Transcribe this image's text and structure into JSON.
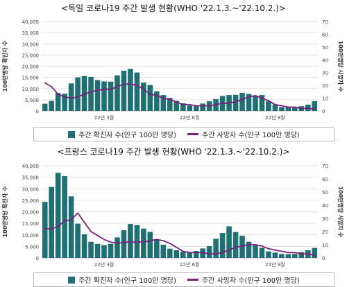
{
  "colors": {
    "bar": "#1f6f73",
    "line": "#7b1f7b",
    "grid": "#d9d9d9",
    "axis": "#9a9a9a"
  },
  "legend": {
    "bar_label": "주간 확진자 수(인구 100만 명당)",
    "line_label": "주간 사망자 수(인구 100만 명당)"
  },
  "chart_data": [
    {
      "type": "bar",
      "title": "<독일 코로나19 주간 발생 현황(WHO '22.1.3.~'22.10.2.)>",
      "ylabel": "100만명당 확진자 수",
      "ylabel_right": "100만명당 사망자 수",
      "ylim": [
        0,
        40000
      ],
      "ylim_right": [
        0,
        70
      ],
      "yticks": [
        "0",
        "5,000",
        "10,000",
        "15,000",
        "20,000",
        "25,000",
        "30,000",
        "35,000",
        "40,000"
      ],
      "yticks_right": [
        "0",
        "10",
        "20",
        "30",
        "40",
        "50",
        "60",
        "70"
      ],
      "x_tick_labels": [
        {
          "index": 9,
          "label": "22년 3월"
        },
        {
          "index": 22,
          "label": "22년 6월"
        },
        {
          "index": 35,
          "label": "22년 9월"
        }
      ],
      "grid": true,
      "series": [
        {
          "name": "주간 확진자 수(인구 100만 명당)",
          "type": "bar",
          "axis": "left",
          "values": [
            3200,
            4500,
            8000,
            7700,
            12300,
            15000,
            15600,
            15200,
            13800,
            13200,
            13100,
            15900,
            18000,
            18800,
            17200,
            12700,
            11600,
            8800,
            7100,
            5800,
            4500,
            3400,
            2400,
            2100,
            3300,
            4300,
            5300,
            6700,
            7100,
            7200,
            8100,
            7600,
            6700,
            7100,
            4400,
            2900,
            1700,
            1700,
            1800,
            2100,
            2800,
            4400
          ]
        },
        {
          "name": "주간 사망자 수(인구 100만 명당)",
          "type": "line",
          "axis": "right",
          "values": [
            22,
            19,
            13,
            11,
            10,
            11,
            13,
            15,
            16,
            17,
            17,
            19,
            21,
            21,
            20,
            17,
            13,
            12,
            10,
            9,
            7,
            5,
            5,
            4,
            4,
            4,
            5,
            6,
            6,
            7,
            9,
            11,
            12,
            10,
            8,
            5,
            4,
            3,
            3,
            2,
            2,
            1.5
          ]
        }
      ]
    },
    {
      "type": "bar",
      "title": "<프랑스 코로나19 주간 발생 현황(WHO '22.1.3.~'22.10.2.)>",
      "ylabel": "100만명당 확진자 수",
      "ylabel_right": "100만명당 사망자 수",
      "ylim": [
        0,
        40000
      ],
      "ylim_right": [
        0,
        70
      ],
      "yticks": [
        "0",
        "5,000",
        "10,000",
        "15,000",
        "20,000",
        "25,000",
        "30,000",
        "35,000",
        "40,000"
      ],
      "yticks_right": [
        "0",
        "10",
        "20",
        "30",
        "40",
        "50",
        "60",
        "70"
      ],
      "x_tick_labels": [
        {
          "index": 9,
          "label": "22년 3월"
        },
        {
          "index": 22,
          "label": "22년 6월"
        },
        {
          "index": 35,
          "label": "22년 9월"
        }
      ],
      "grid": true,
      "series": [
        {
          "name": "주간 확진자 수(인구 100만 명당)",
          "type": "bar",
          "axis": "left",
          "values": [
            24300,
            30800,
            36900,
            35500,
            26700,
            14800,
            10200,
            7000,
            6100,
            5500,
            6100,
            8900,
            12000,
            14700,
            14200,
            12700,
            11300,
            8000,
            5700,
            4000,
            3300,
            2700,
            2600,
            3000,
            4100,
            5100,
            8300,
            10800,
            13700,
            11200,
            9600,
            7000,
            5700,
            4400,
            2800,
            2300,
            1700,
            1600,
            1700,
            2500,
            3300,
            4300
          ]
        },
        {
          "name": "주간 사망자 수(인구 100만 명당)",
          "type": "line",
          "axis": "right",
          "values": [
            22,
            22,
            24,
            28,
            29,
            34,
            27,
            20,
            17,
            14,
            12,
            11,
            12,
            12,
            12,
            12,
            13,
            14,
            13,
            11,
            8,
            5,
            4,
            4,
            4,
            3,
            3,
            4,
            6,
            8,
            9,
            10,
            10,
            9,
            7,
            6,
            5,
            4,
            4,
            3,
            3,
            2
          ]
        }
      ]
    }
  ]
}
